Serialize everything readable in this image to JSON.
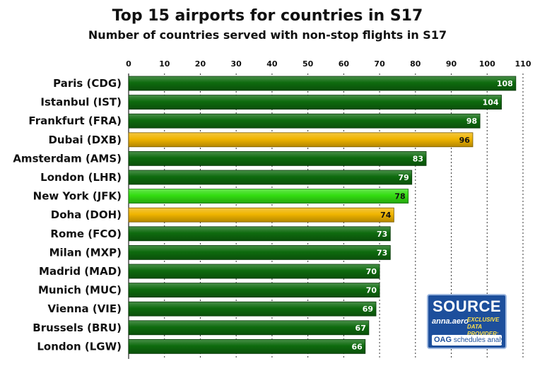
{
  "chart_data": {
    "type": "bar",
    "orientation": "horizontal",
    "title": "Top 15 airports for countries in S17",
    "subtitle": "Number of countries served with non-stop flights in S17",
    "categories": [
      "Paris (CDG)",
      "Istanbul (IST)",
      "Frankfurt (FRA)",
      "Dubai (DXB)",
      "Amsterdam (AMS)",
      "London (LHR)",
      "New York (JFK)",
      "Doha (DOH)",
      "Rome (FCO)",
      "Milan (MXP)",
      "Madrid (MAD)",
      "Munich (MUC)",
      "Vienna (VIE)",
      "Brussels (BRU)",
      "London (LGW)"
    ],
    "values": [
      108,
      104,
      98,
      96,
      83,
      79,
      78,
      74,
      73,
      73,
      70,
      70,
      69,
      67,
      66
    ],
    "bar_colors": [
      "#0e6b0e",
      "#0e6b0e",
      "#0e6b0e",
      "#f0b400",
      "#0e6b0e",
      "#0e6b0e",
      "#33dd11",
      "#f0b400",
      "#0e6b0e",
      "#0e6b0e",
      "#0e6b0e",
      "#0e6b0e",
      "#0e6b0e",
      "#0e6b0e",
      "#0e6b0e"
    ],
    "xlim": [
      0,
      110
    ],
    "xticks": [
      0,
      10,
      20,
      30,
      40,
      50,
      60,
      70,
      80,
      90,
      100,
      110
    ],
    "xaxis_position": "top",
    "grid": "vertical dotted"
  },
  "badge": {
    "title": "SOURCE",
    "brand": "anna.aero",
    "exclusive": "EXCLUSIVE DATA PROVIDER:",
    "oag": "OAG",
    "oag_product": "schedules analyser"
  }
}
